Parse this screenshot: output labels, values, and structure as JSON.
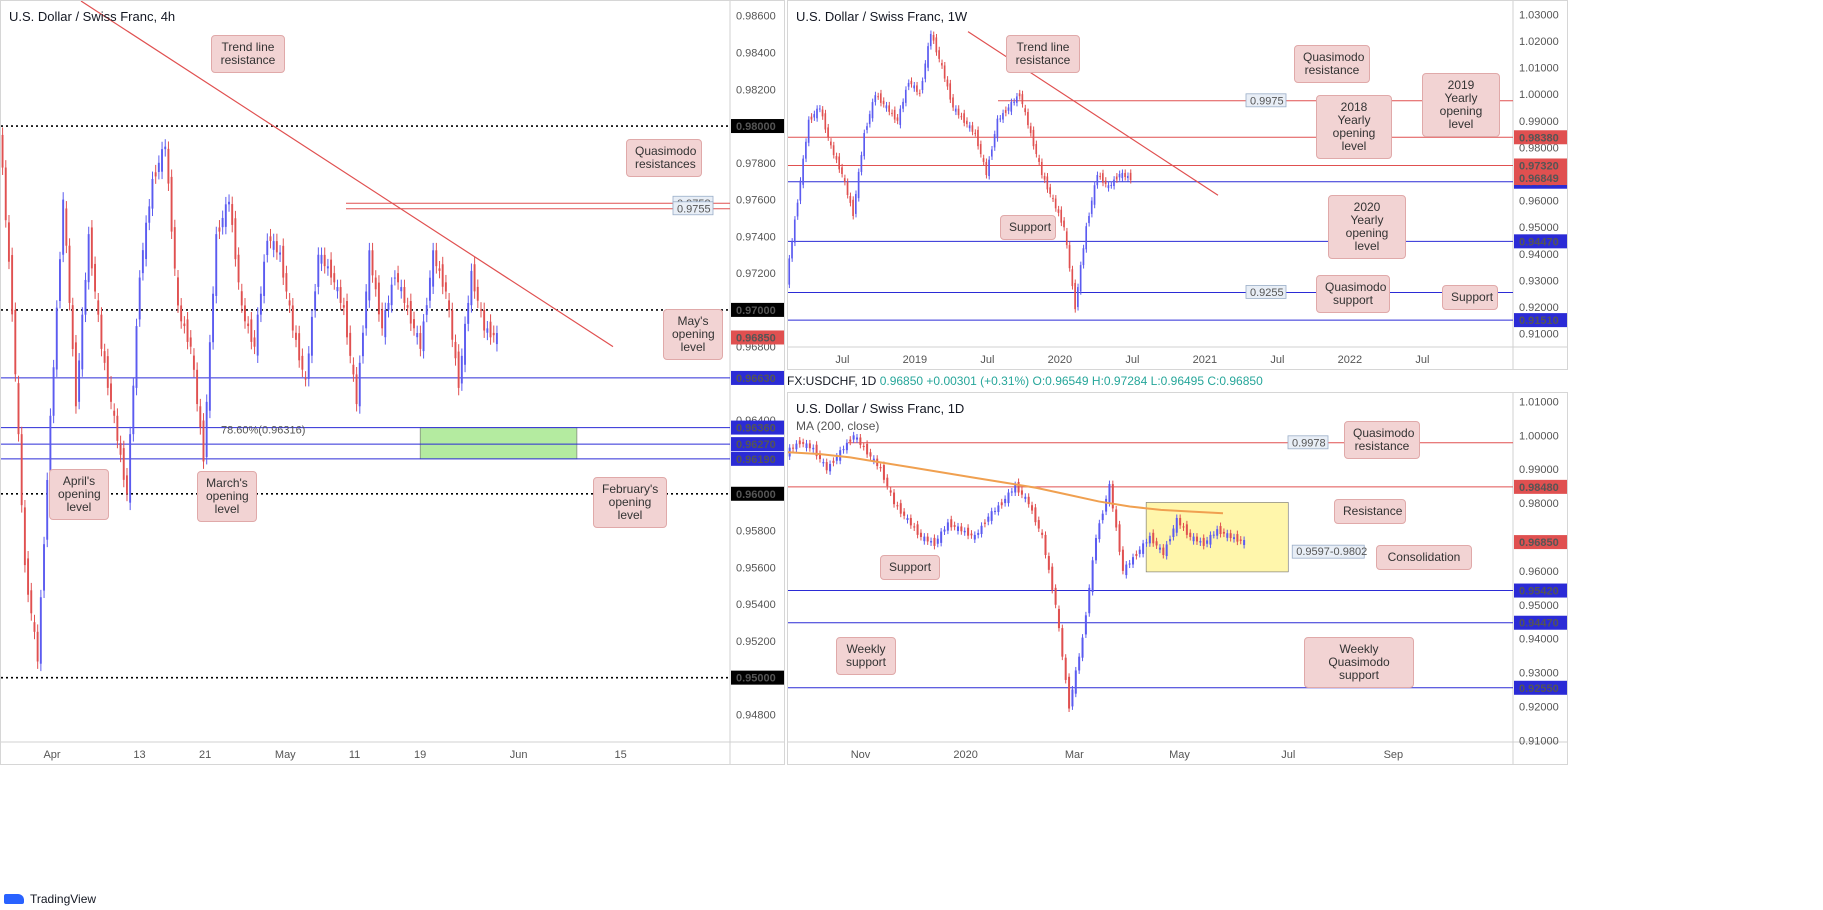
{
  "chart_data": [
    {
      "type": "line",
      "title": "U.S. Dollar / Swiss Franc, 4h",
      "ylim": [
        0.9465,
        0.9868
      ],
      "yticks": [
        0.986,
        0.984,
        0.982,
        0.978,
        0.976,
        0.974,
        0.972,
        0.968,
        0.964,
        0.958,
        0.956,
        0.954,
        0.952,
        0.948
      ],
      "ytick_labels": [
        "0.98600",
        "0.98400",
        "0.98200",
        "0.97800",
        "0.97600",
        "0.97400",
        "0.97200",
        "0.96800",
        "0.96400",
        "0.95800",
        "0.95600",
        "0.95400",
        "0.95200",
        "0.94800"
      ],
      "xticks": [
        "Apr",
        "13",
        "21",
        "May",
        "11",
        "19",
        "Jun",
        "15"
      ],
      "x_tick_pos": [
        0.07,
        0.19,
        0.28,
        0.39,
        0.485,
        0.575,
        0.71,
        0.85
      ],
      "series": [
        {
          "values": [
            0.98,
            0.97,
            0.956,
            0.951,
            0.964,
            0.976,
            0.965,
            0.974,
            0.968,
            0.964,
            0.96,
            0.972,
            0.977,
            0.979,
            0.97,
            0.968,
            0.962,
            0.974,
            0.976,
            0.97,
            0.968,
            0.974,
            0.973,
            0.969,
            0.966,
            0.973,
            0.972,
            0.97,
            0.965,
            0.973,
            0.969,
            0.972,
            0.97,
            0.968,
            0.973,
            0.971,
            0.966,
            0.972,
            0.969,
            0.9685
          ]
        }
      ],
      "levels": [
        {
          "price": 0.98,
          "label": "0.98000",
          "style": "dotted",
          "color": "#000000"
        },
        {
          "price": 0.97,
          "label": "0.97000",
          "style": "dotted",
          "color": "#000000"
        },
        {
          "price": 0.96,
          "label": "0.96000",
          "style": "dotted",
          "color": "#000000"
        },
        {
          "price": 0.95,
          "label": "0.95000",
          "style": "dotted",
          "color": "#000000"
        },
        {
          "price": 0.9758,
          "label": "0.9758",
          "style": "solid",
          "color": "#e05050"
        },
        {
          "price": 0.9755,
          "label": "0.9755",
          "style": "solid",
          "color": "#e05050"
        },
        {
          "price": 0.9663,
          "label": "0.96630",
          "style": "solid",
          "color": "#2b2bd6"
        },
        {
          "price": 0.9636,
          "label": "0.96360",
          "style": "solid",
          "color": "#2b2bd6"
        },
        {
          "price": 0.9627,
          "label": "0.96270",
          "style": "solid",
          "color": "#2b2bd6"
        },
        {
          "price": 0.9619,
          "label": "0.96190",
          "style": "solid",
          "color": "#2b2bd6"
        }
      ],
      "current_price": {
        "price": 0.9685,
        "label": "0.96850"
      },
      "fib_label": "78.60%(0.96316)",
      "zone": {
        "from": 0.9619,
        "to": 0.9636,
        "color": "#a8e890"
      },
      "annotations": [
        "Trend line resistance",
        "Quasimodo resistances",
        "May's opening level",
        "April's opening level",
        "March's opening level",
        "February's opening level"
      ]
    },
    {
      "type": "line",
      "title": "U.S. Dollar / Swiss Franc, 1W",
      "ylim": [
        0.905,
        1.035
      ],
      "yticks": [
        1.03,
        1.02,
        1.01,
        1.0,
        0.99,
        0.98,
        0.97,
        0.96,
        0.95,
        0.94,
        0.93,
        0.92,
        0.91
      ],
      "ytick_labels": [
        "1.03000",
        "1.02000",
        "1.01000",
        "1.00000",
        "0.99000",
        "0.98000",
        "0.97000",
        "0.96000",
        "0.95000",
        "0.94000",
        "0.93000",
        "0.92000",
        "0.91000"
      ],
      "xticks": [
        "Jul",
        "2019",
        "Jul",
        "2020",
        "Jul",
        "2021",
        "Jul",
        "2022",
        "Jul"
      ],
      "x_tick_pos": [
        0.075,
        0.175,
        0.275,
        0.375,
        0.475,
        0.575,
        0.675,
        0.775,
        0.875
      ],
      "series": [
        {
          "values": [
            0.93,
            0.96,
            0.99,
            0.995,
            0.98,
            0.97,
            0.955,
            0.985,
            1.0,
            0.995,
            0.99,
            1.005,
            1.0,
            1.023,
            1.01,
            0.995,
            0.99,
            0.985,
            0.97,
            0.99,
            0.995,
            1.0,
            0.985,
            0.97,
            0.96,
            0.95,
            0.92,
            0.95,
            0.97,
            0.965,
            0.97,
            0.9685
          ]
        }
      ],
      "levels": [
        {
          "price": 0.9975,
          "label": "0.9975",
          "style": "solid",
          "color": "#e05050"
        },
        {
          "price": 0.9838,
          "label": "0.98380",
          "style": "solid",
          "color": "#e05050"
        },
        {
          "price": 0.9732,
          "label": "0.97320",
          "style": "solid",
          "color": "#e05050"
        },
        {
          "price": 0.9671,
          "label": "0.96710",
          "style": "solid",
          "color": "#2b2bd6"
        },
        {
          "price": 0.9447,
          "label": "0.94470",
          "style": "solid",
          "color": "#2b2bd6"
        },
        {
          "price": 0.9255,
          "label": "0.9255",
          "style": "solid",
          "color": "#2b2bd6"
        },
        {
          "price": 0.9151,
          "label": "0.91510",
          "style": "solid",
          "color": "#2b2bd6"
        }
      ],
      "current_price": {
        "price": 0.96849,
        "label": "0.96849"
      },
      "annotations": [
        "Trend line resistance",
        "Quasimodo resistance",
        "2019 Yearly opening level",
        "2018 Yearly opening level",
        "2020 Yearly opening level",
        "Support",
        "Quasimodo support",
        "Support"
      ]
    },
    {
      "type": "line",
      "title": "U.S. Dollar / Swiss Franc, 1D",
      "subtitle": "MA (200, close)",
      "ylim": [
        0.9095,
        1.0125
      ],
      "yticks": [
        1.01,
        1.0,
        0.99,
        0.98,
        0.96,
        0.95,
        0.94,
        0.93,
        0.92,
        0.91
      ],
      "ytick_labels": [
        "1.01000",
        "1.00000",
        "0.99000",
        "0.98000",
        "0.96000",
        "0.95000",
        "0.94000",
        "0.93000",
        "0.92000",
        "0.91000"
      ],
      "xticks": [
        "Nov",
        "2020",
        "Mar",
        "May",
        "Jul",
        "Sep"
      ],
      "x_tick_pos": [
        0.1,
        0.245,
        0.395,
        0.54,
        0.69,
        0.835
      ],
      "series": [
        {
          "values": [
            0.995,
            0.998,
            0.996,
            0.99,
            0.995,
            1.0,
            0.995,
            0.99,
            0.98,
            0.975,
            0.97,
            0.968,
            0.974,
            0.972,
            0.97,
            0.976,
            0.98,
            0.985,
            0.98,
            0.97,
            0.95,
            0.92,
            0.94,
            0.97,
            0.985,
            0.96,
            0.965,
            0.97,
            0.965,
            0.975,
            0.97,
            0.968,
            0.972,
            0.97,
            0.9685
          ]
        }
      ],
      "ma_series": {
        "name": "MA (200, close)",
        "values": [
          0.995,
          0.9945,
          0.9935,
          0.992,
          0.9905,
          0.989,
          0.9875,
          0.986,
          0.9845,
          0.9825,
          0.9805,
          0.979,
          0.978,
          0.9775,
          0.977
        ]
      },
      "levels": [
        {
          "price": 0.9978,
          "label": "0.9978",
          "style": "solid",
          "color": "#e05050"
        },
        {
          "price": 0.9848,
          "label": "0.98480",
          "style": "solid",
          "color": "#e05050"
        },
        {
          "price": 0.9542,
          "label": "0.95420",
          "style": "solid",
          "color": "#2b2bd6"
        },
        {
          "price": 0.9447,
          "label": "0.94470",
          "style": "solid",
          "color": "#2b2bd6"
        },
        {
          "price": 0.9255,
          "label": "0.92550",
          "style": "solid",
          "color": "#2b2bd6"
        }
      ],
      "current_price": {
        "price": 0.9685,
        "label": "0.96850"
      },
      "zone": {
        "from": 0.9597,
        "to": 0.9802,
        "color": "#fff59d",
        "label": "0.9597-0.9802"
      },
      "annotations": [
        "Quasimodo resistance",
        "Resistance",
        "Consolidation",
        "Support",
        "Weekly support",
        "Weekly Quasimodo support"
      ]
    }
  ],
  "ohlc": {
    "symbol": "FX:USDCHF, 1D",
    "price": "0.96850",
    "change": "+0.00301 (+0.31%)",
    "o": "O:0.96549",
    "h": "H:0.97284",
    "l": "L:0.96495",
    "c": "C:0.96850"
  },
  "brand": "TradingView",
  "colors": {
    "up": "#5b5bf0",
    "down": "#e05050",
    "ma": "#f0a050"
  }
}
